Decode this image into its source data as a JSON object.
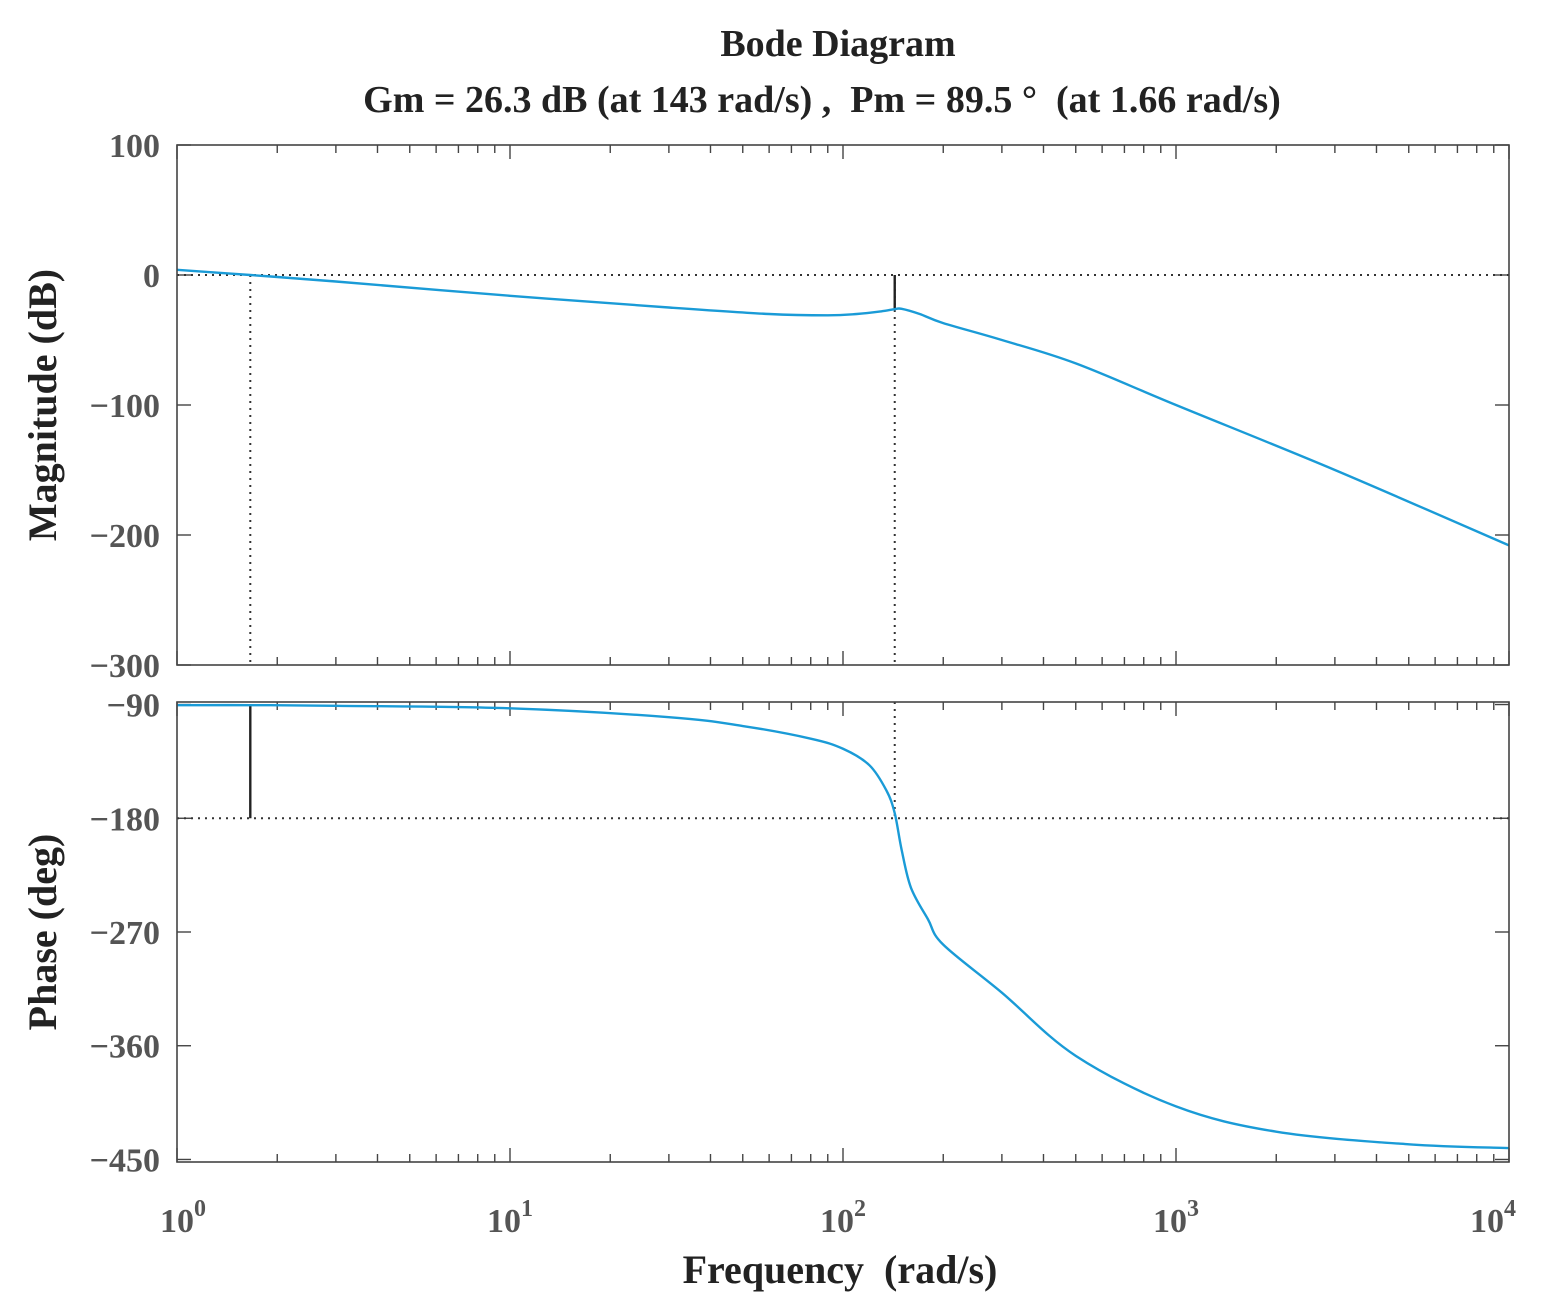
{
  "chart_data": {
    "type": "line",
    "title": "Bode Diagram",
    "subtitle": "Gm = 26.3 dB (at 143 rad/s) ,  Pm = 89.5 °  (at 1.66 rad/s)",
    "xlabel": "Frequency  (rad/s)",
    "xscale": "log",
    "xlim": [
      1,
      10000
    ],
    "x_ticks": [
      {
        "value": 1,
        "base": "10",
        "exp": "0"
      },
      {
        "value": 10,
        "base": "10",
        "exp": "1"
      },
      {
        "value": 100,
        "base": "10",
        "exp": "2"
      },
      {
        "value": 1000,
        "base": "10",
        "exp": "3"
      },
      {
        "value": 10000,
        "base": "10",
        "exp": "4"
      }
    ],
    "gain_margin": {
      "value_db": 26.3,
      "frequency": 143
    },
    "phase_margin": {
      "value_deg": 89.5,
      "frequency": 1.66
    },
    "magnitude": {
      "ylabel": "Magnitude (dB)",
      "ylim": [
        -300,
        100
      ],
      "y_ticks": [
        {
          "value": 100,
          "label": "100"
        },
        {
          "value": 0,
          "label": "0"
        },
        {
          "value": -100,
          "label": "−100"
        },
        {
          "value": -200,
          "label": "−200"
        },
        {
          "value": -300,
          "label": "−300"
        }
      ],
      "reference_line": 0,
      "series": [
        {
          "name": "Magnitude",
          "x": [
            1,
            1.66,
            3,
            10,
            30,
            60,
            90,
            110,
            130,
            143,
            150,
            170,
            200,
            300,
            500,
            1000,
            3000,
            10000
          ],
          "y": [
            4,
            0,
            -5,
            -16,
            -25,
            -30,
            -31,
            -30,
            -28,
            -26.3,
            -26,
            -30,
            -37,
            -50,
            -68,
            -100,
            -150,
            -208
          ]
        }
      ]
    },
    "phase": {
      "ylabel": "Phase (deg)",
      "ylim": [
        -452,
        -88
      ],
      "y_ticks": [
        {
          "value": -90,
          "label": "−90"
        },
        {
          "value": -180,
          "label": "−180"
        },
        {
          "value": -270,
          "label": "−270"
        },
        {
          "value": -360,
          "label": "−360"
        },
        {
          "value": -450,
          "label": "−450"
        }
      ],
      "reference_line": -180,
      "series": [
        {
          "name": "Phase",
          "x": [
            1,
            1.66,
            3,
            10,
            30,
            50,
            80,
            100,
            120,
            135,
            143,
            150,
            160,
            180,
            200,
            300,
            500,
            1000,
            2000,
            5000,
            10000
          ],
          "y": [
            -90.5,
            -90.5,
            -91,
            -93,
            -100,
            -107,
            -117,
            -125,
            -138,
            -158,
            -176,
            -205,
            -235,
            -260,
            -280,
            -318,
            -368,
            -408,
            -428,
            -438,
            -441
          ]
        }
      ]
    }
  }
}
